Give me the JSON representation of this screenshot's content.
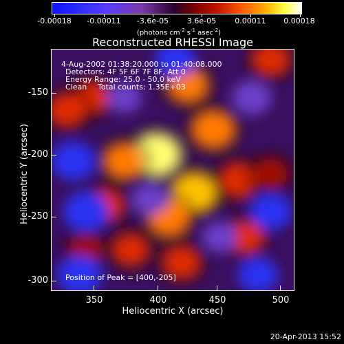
{
  "colorbar": {
    "tick_labels": [
      "-0.00018",
      "-0.00011",
      "-3.6e-05",
      "3.6e-05",
      "0.00011",
      "0.00018"
    ],
    "unit_text": "(photons cm",
    "unit_sup1": "-2",
    "unit_mid": " s",
    "unit_sup2": "-1",
    "unit_mid2": " asec",
    "unit_sup3": "-2",
    "unit_end": ")"
  },
  "title": "Reconstructed RHESSI Image",
  "annotations": {
    "time_range": "4-Aug-2002 01:38:20.000 to 01:40:08.000",
    "detectors": "Detectors: 4F 5F 6F 7F 8F, Att 0",
    "energy": "Energy Range: 25.0 - 50.0 keV",
    "method": "Clean",
    "total_counts": "Total counts: 1.35E+03",
    "peak": "Position of Peak = [400,-205]"
  },
  "axes": {
    "xlabel": "Heliocentric X (arcsec)",
    "ylabel": "Heliocentric Y (arcsec)",
    "x_ticks": [
      "350",
      "400",
      "450",
      "500"
    ],
    "y_ticks": [
      "-150",
      "-200",
      "-250",
      "-300"
    ]
  },
  "footer": {
    "timestamp": "20-Apr-2013 15:52"
  },
  "chart_data": {
    "type": "heatmap",
    "title": "Reconstructed RHESSI Image",
    "xlabel": "Heliocentric X (arcsec)",
    "ylabel": "Heliocentric Y (arcsec)",
    "xlim": [
      318,
      508
    ],
    "ylim": [
      -312,
      -122
    ],
    "colorbar_range": [
      -0.00018,
      0.00018
    ],
    "peak_position": [
      400,
      -205
    ],
    "sources": [
      {
        "x": 400,
        "y": -205,
        "value": 0.00018
      },
      {
        "x": 430,
        "y": -235,
        "value": 0.00016
      },
      {
        "x": 445,
        "y": -185,
        "value": 0.00014
      },
      {
        "x": 425,
        "y": -150,
        "value": 0.00012
      },
      {
        "x": 375,
        "y": -210,
        "value": 0.00012
      },
      {
        "x": 360,
        "y": -245,
        "value": 0.0001
      },
      {
        "x": 470,
        "y": -270,
        "value": 0.0001
      },
      {
        "x": 380,
        "y": -280,
        "value": 9e-05
      },
      {
        "x": 345,
        "y": -280,
        "value": 8e-05
      },
      {
        "x": 420,
        "y": -290,
        "value": 0.0001
      },
      {
        "x": 490,
        "y": -130,
        "value": 0.0001
      },
      {
        "x": 350,
        "y": -160,
        "value": 9e-05
      },
      {
        "x": 330,
        "y": -170,
        "value": 0.0001
      },
      {
        "x": 465,
        "y": -225,
        "value": 0.00011
      },
      {
        "x": 490,
        "y": -220,
        "value": 8e-05
      },
      {
        "x": 410,
        "y": -255,
        "value": 0.00013
      },
      {
        "x": 335,
        "y": -210,
        "value": -0.00016
      },
      {
        "x": 345,
        "y": -250,
        "value": -0.00017
      },
      {
        "x": 340,
        "y": -300,
        "value": -0.00016
      },
      {
        "x": 415,
        "y": -130,
        "value": -0.00013
      },
      {
        "x": 475,
        "y": -160,
        "value": -0.00012
      },
      {
        "x": 490,
        "y": -250,
        "value": -0.00014
      },
      {
        "x": 480,
        "y": -300,
        "value": -0.00013
      },
      {
        "x": 395,
        "y": -240,
        "value": -0.0001
      },
      {
        "x": 450,
        "y": -270,
        "value": -9e-05
      },
      {
        "x": 375,
        "y": -160,
        "value": -9e-05
      }
    ]
  }
}
